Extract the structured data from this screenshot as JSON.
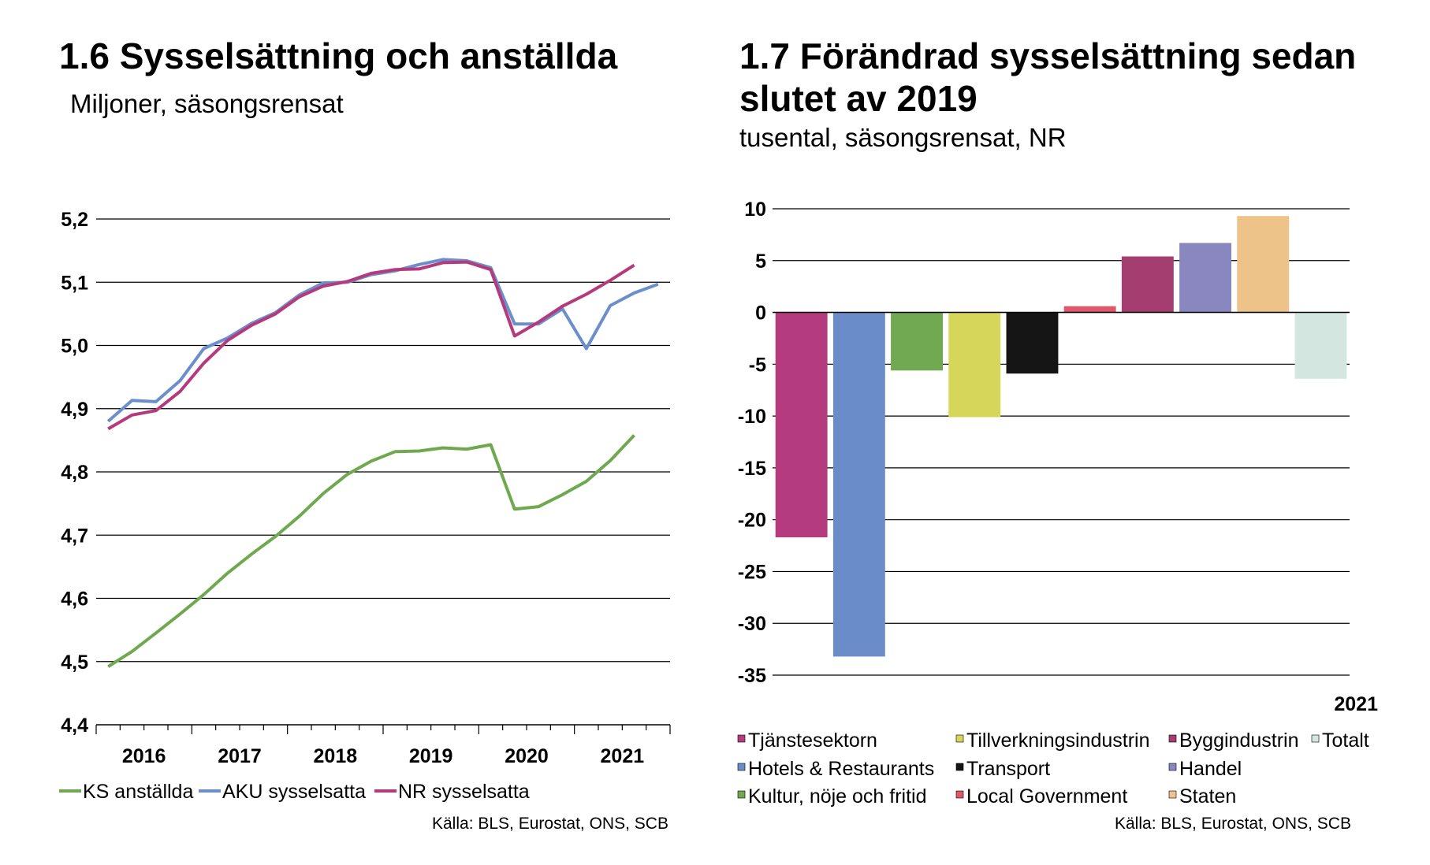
{
  "panels": {
    "left": {
      "title": "1.6 Sysselsättning och anställda",
      "subtitle": "Miljoner, säsongsrensat",
      "source": "Källa: BLS, Eurostat, ONS, SCB"
    },
    "right": {
      "title_line1": "1.7 Förändrad sysselsättning sedan",
      "title_line2": "slutet av 2019",
      "subtitle": "tusental, säsongsrensat, NR",
      "source": "Källa: BLS, Eurostat, ONS, SCB"
    }
  },
  "chart_data": [
    {
      "type": "line",
      "title": "1.6 Sysselsättning och anställda",
      "subtitle": "Miljoner, säsongsrensat",
      "ylim": [
        4.4,
        5.2
      ],
      "yticks": [
        "4,4",
        "4,5",
        "4,6",
        "4,7",
        "4,8",
        "4,9",
        "5,0",
        "5,1",
        "5,2"
      ],
      "xtick_labels": [
        "2016",
        "2017",
        "2018",
        "2019",
        "2020",
        "2021"
      ],
      "grid": true,
      "legend_position": "bottom",
      "series": [
        {
          "name": "KS anställda",
          "color": "#6fa84f",
          "values": [
            4.492,
            4.516,
            4.545,
            4.575,
            4.606,
            4.64,
            4.67,
            4.698,
            4.73,
            4.766,
            4.796,
            4.817,
            4.832,
            4.833,
            4.838,
            4.836,
            4.843,
            4.741,
            4.745,
            4.764,
            4.785,
            4.818,
            4.858
          ]
        },
        {
          "name": "AKU sysselsatta",
          "color": "#6a8fcb",
          "values": [
            4.88,
            4.913,
            4.911,
            4.944,
            4.995,
            5.012,
            5.035,
            5.052,
            5.08,
            5.099,
            5.1,
            5.112,
            5.118,
            5.128,
            5.136,
            5.134,
            5.123,
            5.034,
            5.034,
            5.058,
            4.995,
            5.063,
            5.083,
            5.097
          ]
        },
        {
          "name": "NR sysselsatta",
          "color": "#b53a7c",
          "values": [
            4.868,
            4.89,
            4.897,
            4.927,
            4.972,
            5.008,
            5.032,
            5.05,
            5.077,
            5.094,
            5.101,
            5.114,
            5.12,
            5.121,
            5.131,
            5.132,
            5.12,
            5.015,
            5.037,
            5.062,
            5.081,
            5.103,
            5.127
          ]
        }
      ]
    },
    {
      "type": "bar",
      "title": "1.7 Förändrad sysselsättning sedan slutet av 2019",
      "subtitle": "tusental, säsongsrensat, NR",
      "ylim": [
        -35,
        10
      ],
      "yticks": [
        "10",
        "5",
        "0",
        "-5",
        "-10",
        "-15",
        "-20",
        "-25",
        "-30",
        "-35"
      ],
      "xlabel": "2021",
      "grid": true,
      "legend_position": "bottom",
      "series": [
        {
          "name": "Tjänstesektorn",
          "color": "#b43b7d",
          "value": -21.7
        },
        {
          "name": "Hotels & Restaurants",
          "color": "#6a8cc8",
          "value": -33.2
        },
        {
          "name": "Kultur, nöje och fritid",
          "color": "#71a852",
          "value": -5.6
        },
        {
          "name": "Tillverkningsindustrin",
          "color": "#d6d65a",
          "value": -10.1
        },
        {
          "name": "Transport",
          "color": "#151515",
          "value": -5.9
        },
        {
          "name": "Local Government",
          "color": "#e0566a",
          "value": 0.6
        },
        {
          "name": "Byggindustrin",
          "color": "#a63d70",
          "value": 5.4
        },
        {
          "name": "Handel",
          "color": "#8a86bf",
          "value": 6.7
        },
        {
          "name": "Staten",
          "color": "#eec38a",
          "value": 9.3
        },
        {
          "name": "Totalt",
          "color": "#d3e6df",
          "value": -6.4
        }
      ]
    }
  ]
}
